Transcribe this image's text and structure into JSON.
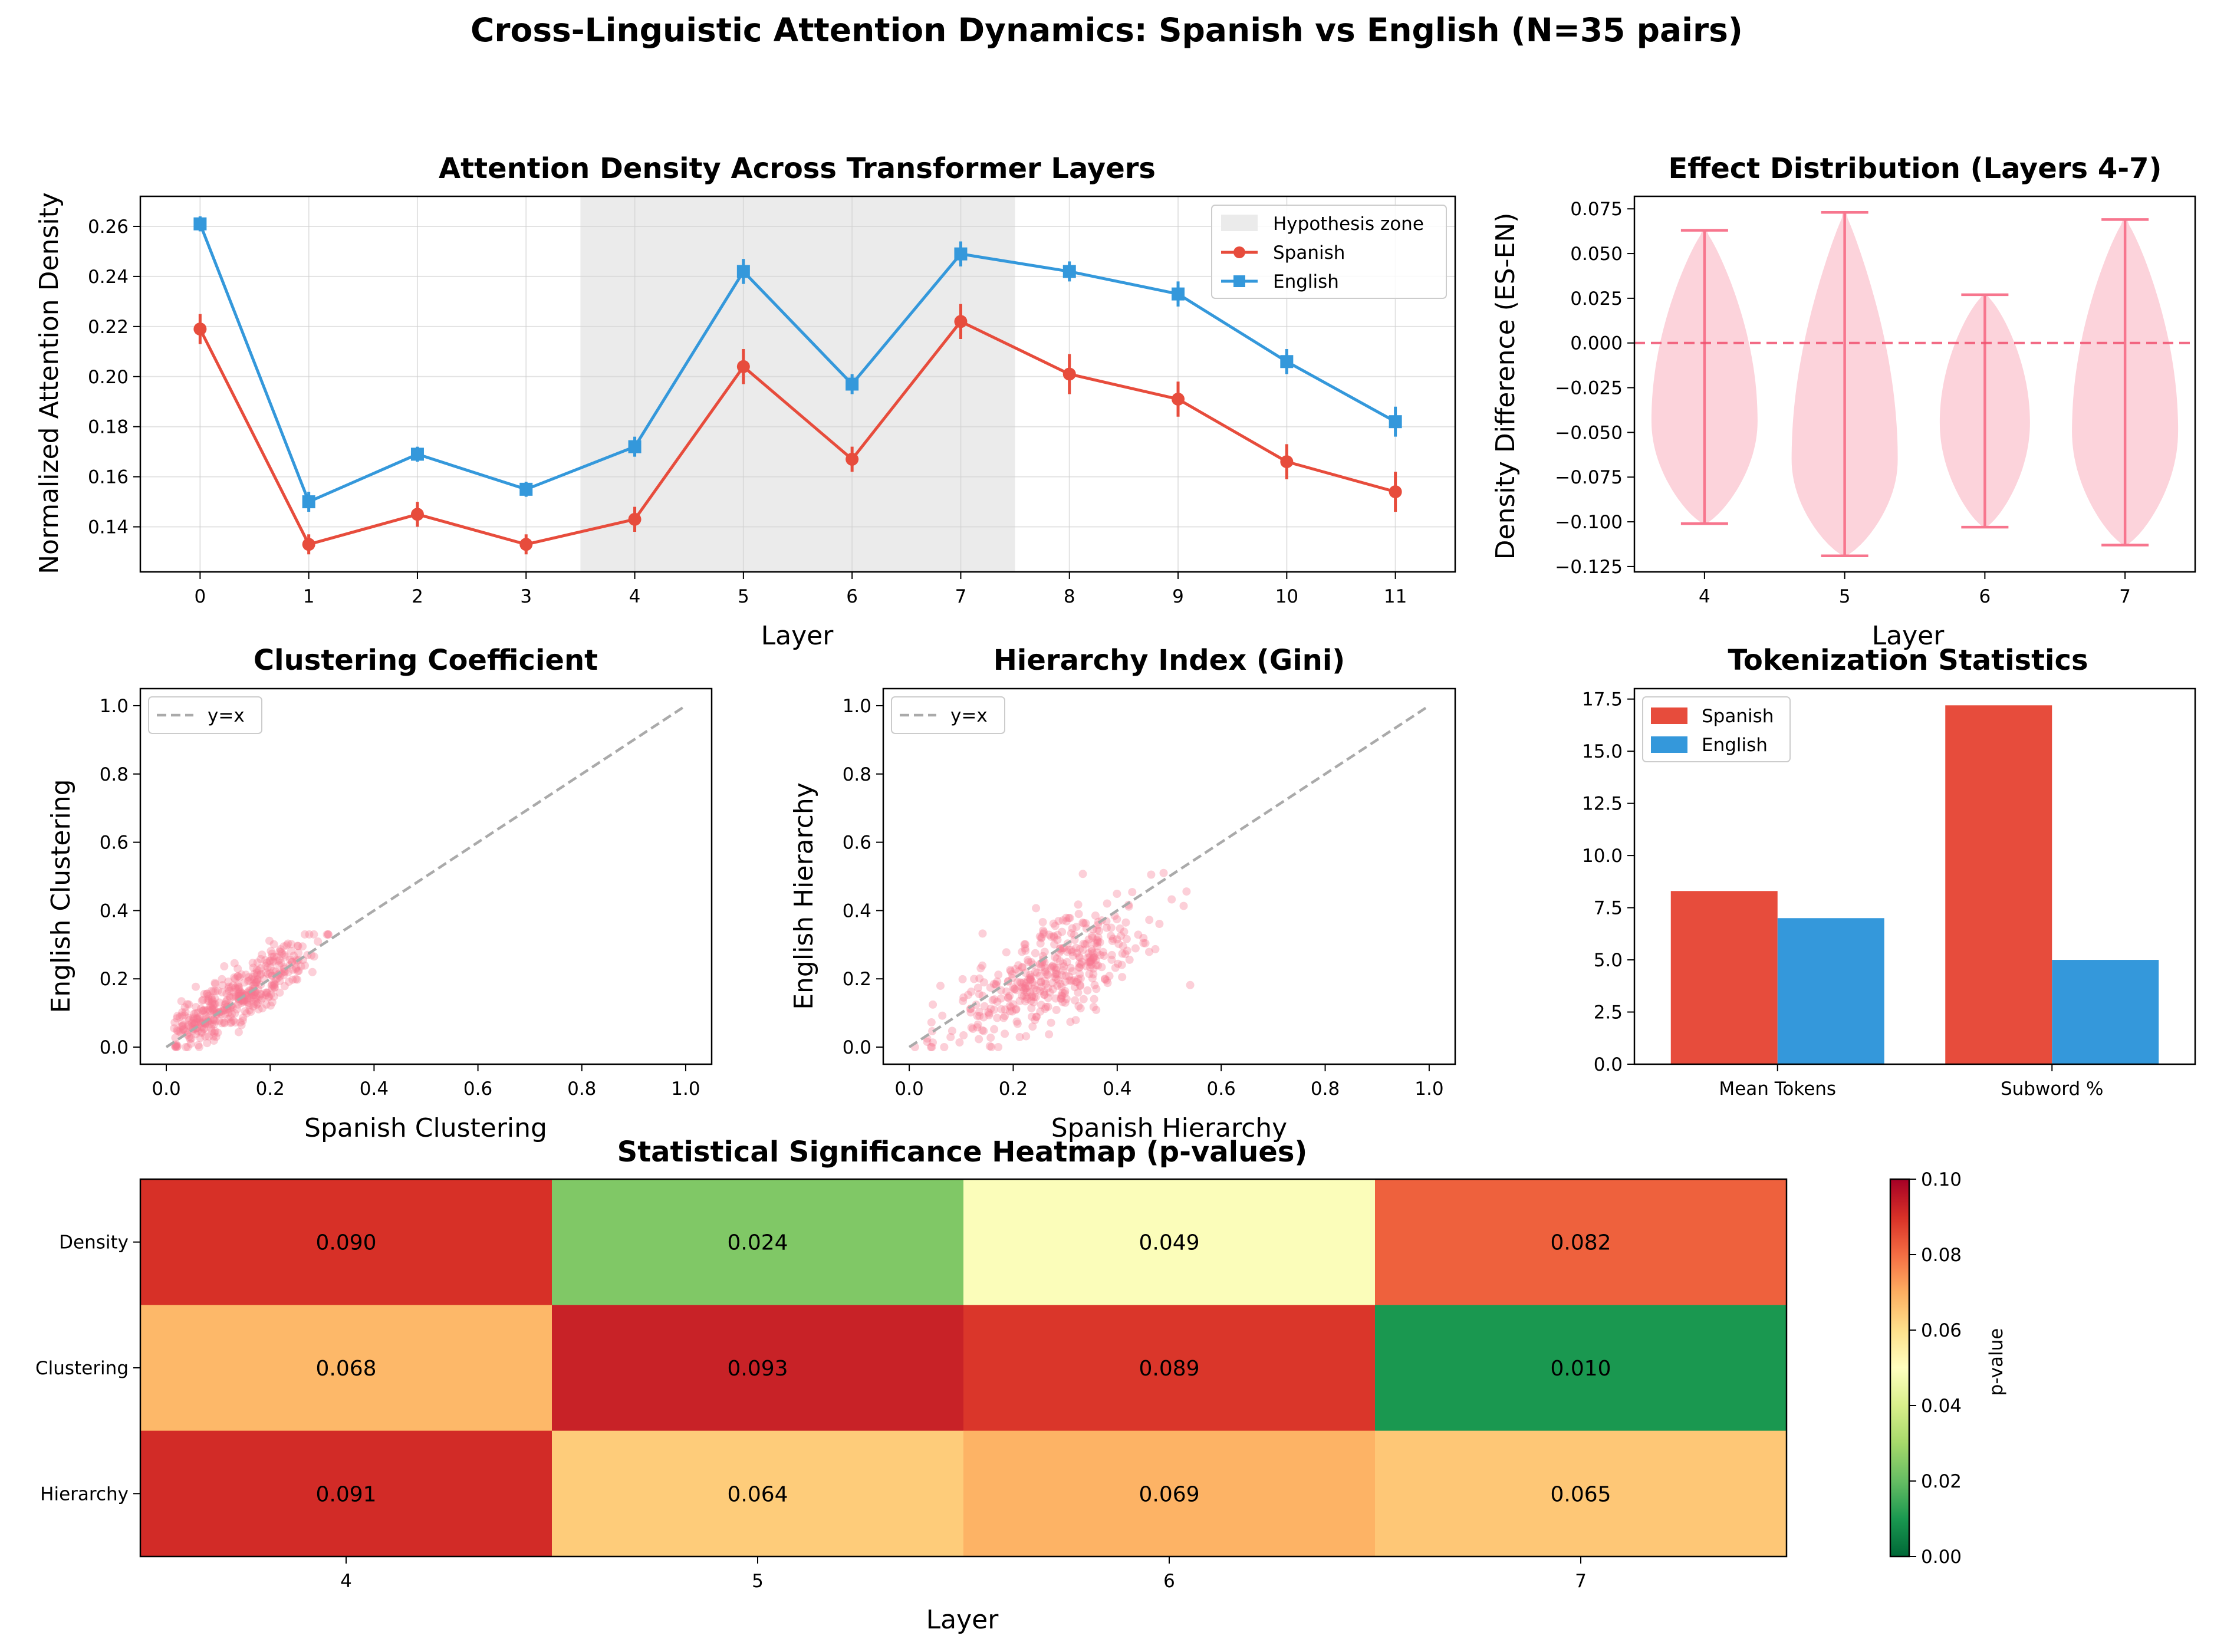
{
  "figure": {
    "title": "Cross-Linguistic Attention Dynamics: Spanish vs English (N=35 pairs)"
  },
  "colors": {
    "spanish": "#e74c3c",
    "english": "#3498db",
    "violin": "#f7768e",
    "scatter": "#f7768e",
    "zone": "#ebebeb",
    "identity": "#aaaaaa"
  },
  "chart_data": [
    {
      "id": "density",
      "type": "line",
      "title": "Attention Density Across Transformer Layers",
      "xlabel": "Layer",
      "ylabel": "Normalized Attention Density",
      "x": [
        0,
        1,
        2,
        3,
        4,
        5,
        6,
        7,
        8,
        9,
        10,
        11
      ],
      "xlim": [
        -0.55,
        11.55
      ],
      "ylim": [
        0.122,
        0.272
      ],
      "yticks": [
        0.14,
        0.16,
        0.18,
        0.2,
        0.22,
        0.24,
        0.26
      ],
      "ytick_labels": [
        "0.14",
        "0.16",
        "0.18",
        "0.20",
        "0.22",
        "0.24",
        "0.26"
      ],
      "xtick_labels": [
        "0",
        "1",
        "2",
        "3",
        "4",
        "5",
        "6",
        "7",
        "8",
        "9",
        "10",
        "11"
      ],
      "shaded_region": {
        "label": "Hypothesis zone",
        "x0": 3.5,
        "x1": 7.5
      },
      "grid": true,
      "legend_position": "top-right",
      "series": [
        {
          "name": "Spanish",
          "marker": "circle",
          "values": [
            0.219,
            0.133,
            0.145,
            0.133,
            0.143,
            0.204,
            0.167,
            0.222,
            0.201,
            0.191,
            0.166,
            0.154
          ],
          "errors": [
            0.006,
            0.004,
            0.005,
            0.004,
            0.005,
            0.007,
            0.005,
            0.007,
            0.008,
            0.007,
            0.007,
            0.008
          ]
        },
        {
          "name": "English",
          "marker": "square",
          "values": [
            0.261,
            0.15,
            0.169,
            0.155,
            0.172,
            0.242,
            0.197,
            0.249,
            0.242,
            0.233,
            0.206,
            0.182
          ],
          "errors": [
            0.003,
            0.004,
            0.003,
            0.003,
            0.004,
            0.005,
            0.004,
            0.005,
            0.004,
            0.005,
            0.005,
            0.006
          ]
        }
      ]
    },
    {
      "id": "violin",
      "type": "violin",
      "title": "Effect Distribution (Layers 4-7)",
      "xlabel": "Layer",
      "ylabel": "Density Difference (ES-EN)",
      "categories": [
        "4",
        "5",
        "6",
        "7"
      ],
      "ylim": [
        -0.128,
        0.082
      ],
      "yticks": [
        -0.125,
        -0.1,
        -0.075,
        -0.05,
        -0.025,
        0,
        0.025,
        0.05,
        0.075
      ],
      "ytick_labels": [
        "−0.125",
        "−0.100",
        "−0.075",
        "−0.050",
        "−0.025",
        "0.000",
        "0.025",
        "0.050",
        "0.075"
      ],
      "reference_line": 0,
      "distributions": [
        {
          "layer": "4",
          "min": -0.101,
          "max": 0.063
        },
        {
          "layer": "5",
          "min": -0.119,
          "max": 0.073
        },
        {
          "layer": "6",
          "min": -0.103,
          "max": 0.027
        },
        {
          "layer": "7",
          "min": -0.113,
          "max": 0.069
        }
      ]
    },
    {
      "id": "clustering",
      "type": "scatter",
      "title": "Clustering Coefficient",
      "xlabel": "Spanish Clustering",
      "ylabel": "English Clustering",
      "xlim": [
        -0.05,
        1.05
      ],
      "ylim": [
        -0.05,
        1.05
      ],
      "ticks": [
        0,
        0.2,
        0.4,
        0.6,
        0.8,
        1.0
      ],
      "tick_labels": [
        "0.0",
        "0.2",
        "0.4",
        "0.6",
        "0.8",
        "1.0"
      ],
      "legend_position": "top-left",
      "reference": {
        "label": "y=x"
      },
      "points_summary": {
        "n": 420,
        "x_range": [
          0,
          0.32
        ],
        "y_range": [
          0,
          0.33
        ]
      }
    },
    {
      "id": "hierarchy",
      "type": "scatter",
      "title": "Hierarchy Index (Gini)",
      "xlabel": "Spanish Hierarchy",
      "ylabel": "English Hierarchy",
      "xlim": [
        -0.05,
        1.05
      ],
      "ylim": [
        -0.05,
        1.05
      ],
      "ticks": [
        0,
        0.2,
        0.4,
        0.6,
        0.8,
        1.0
      ],
      "tick_labels": [
        "0.0",
        "0.2",
        "0.4",
        "0.6",
        "0.8",
        "1.0"
      ],
      "legend_position": "top-left",
      "reference": {
        "label": "y=x"
      },
      "points_summary": {
        "n": 420,
        "x_range": [
          0,
          0.57
        ],
        "y_range": [
          0,
          0.51
        ]
      }
    },
    {
      "id": "tokens",
      "type": "bar",
      "title": "Tokenization Statistics",
      "categories": [
        "Mean Tokens",
        "Subword %"
      ],
      "ylim": [
        0,
        18.0
      ],
      "yticks": [
        0,
        2.5,
        5,
        7.5,
        10,
        12.5,
        15,
        17.5
      ],
      "ytick_labels": [
        "0.0",
        "2.5",
        "5.0",
        "7.5",
        "10.0",
        "12.5",
        "15.0",
        "17.5"
      ],
      "legend_position": "top-left",
      "series": [
        {
          "name": "Spanish",
          "values": [
            8.3,
            17.2
          ]
        },
        {
          "name": "English",
          "values": [
            7.0,
            5.0
          ]
        }
      ]
    },
    {
      "id": "heatmap",
      "type": "heatmap",
      "title": "Statistical Significance Heatmap (p-values)",
      "xlabel": "Layer",
      "x": [
        "4",
        "5",
        "6",
        "7"
      ],
      "y": [
        "Density",
        "Clustering",
        "Hierarchy"
      ],
      "values": [
        [
          0.09,
          0.024,
          0.049,
          0.082
        ],
        [
          0.068,
          0.093,
          0.089,
          0.01
        ],
        [
          0.091,
          0.064,
          0.069,
          0.065
        ]
      ],
      "cell_labels": [
        [
          "0.090",
          "0.024",
          "0.049",
          "0.082"
        ],
        [
          "0.068",
          "0.093",
          "0.089",
          "0.010"
        ],
        [
          "0.091",
          "0.064",
          "0.069",
          "0.065"
        ]
      ],
      "colorbar": {
        "label": "p-value",
        "range": [
          0,
          0.1
        ],
        "ticks": [
          0,
          0.02,
          0.04,
          0.06,
          0.08,
          0.1
        ],
        "tick_labels": [
          "0.00",
          "0.02",
          "0.04",
          "0.06",
          "0.08",
          "0.10"
        ]
      }
    }
  ]
}
